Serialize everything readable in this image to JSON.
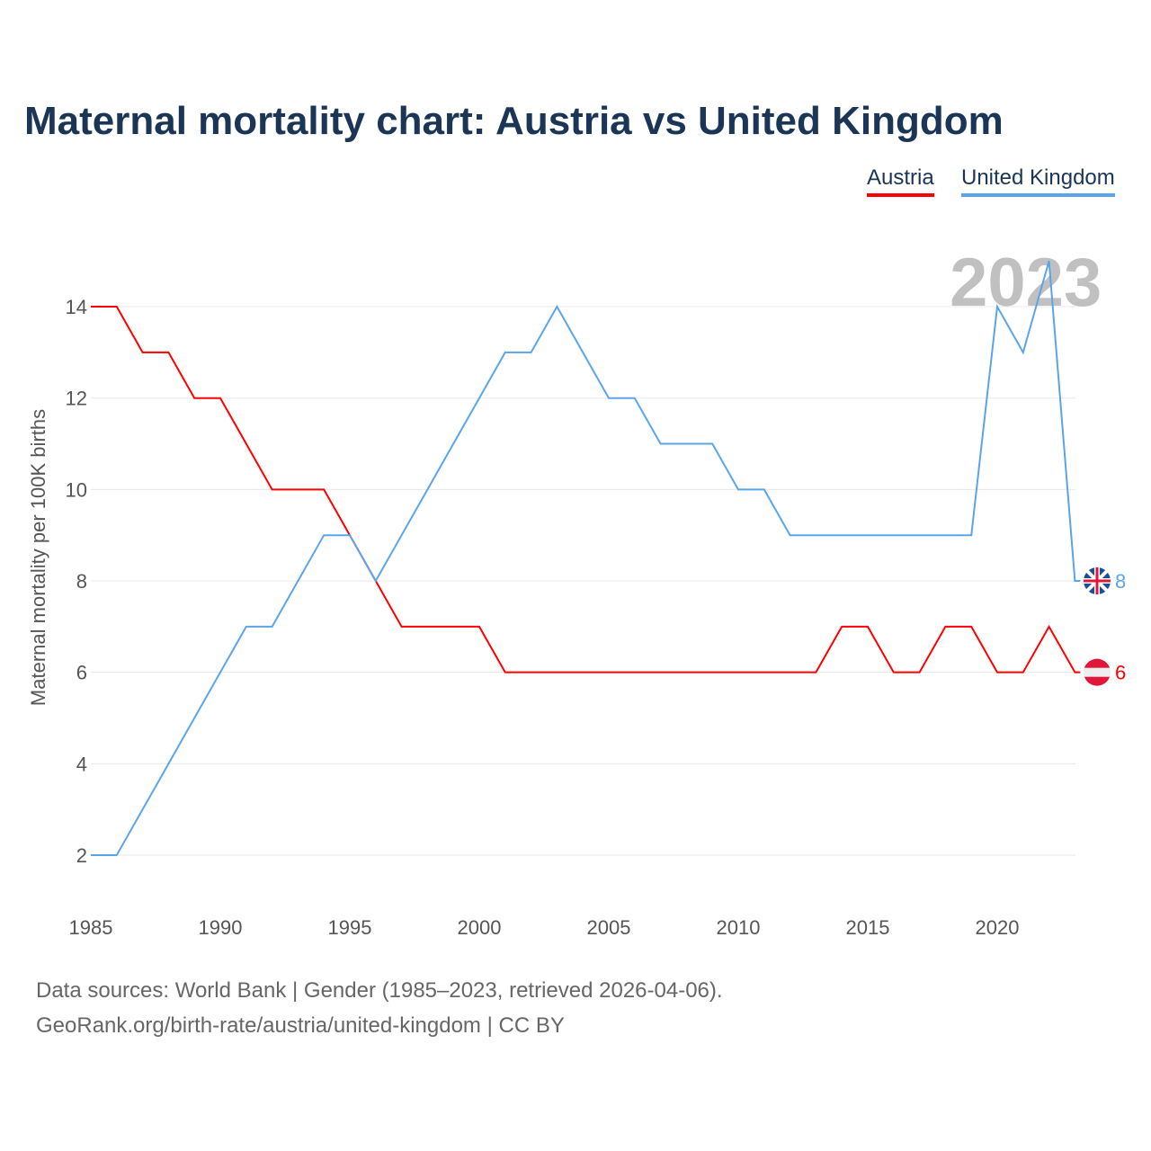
{
  "title": "Maternal mortality chart: Austria vs United Kingdom",
  "footer": {
    "line1": "Data sources: World Bank | Gender (1985–2023, retrieved 2026-04-06).",
    "line2": "GeoRank.org/birth-rate/austria/united-kingdom | CC BY"
  },
  "chart_data": {
    "type": "line",
    "title": "Maternal mortality chart: Austria vs United Kingdom",
    "ylabel": "Maternal mortality per 100K births",
    "xlabel": "",
    "xlim": [
      1985,
      2023
    ],
    "ylim": [
      2,
      14
    ],
    "yticks": [
      2,
      4,
      6,
      8,
      10,
      12,
      14
    ],
    "xticks": [
      1985,
      1990,
      1995,
      2000,
      2005,
      2010,
      2015,
      2020
    ],
    "year_label": "2023",
    "legend_position": "top-right",
    "grid": true,
    "x": [
      1985,
      1986,
      1987,
      1988,
      1989,
      1990,
      1991,
      1992,
      1993,
      1994,
      1995,
      1996,
      1997,
      1998,
      1999,
      2000,
      2001,
      2002,
      2003,
      2004,
      2005,
      2006,
      2007,
      2008,
      2009,
      2010,
      2011,
      2012,
      2013,
      2014,
      2015,
      2016,
      2017,
      2018,
      2019,
      2020,
      2021,
      2022,
      2023
    ],
    "series": [
      {
        "name": "Austria",
        "color": "#ff0000",
        "end_label": "6",
        "values": [
          14,
          14,
          13,
          13,
          12,
          12,
          11,
          10,
          10,
          10,
          9,
          8,
          7,
          7,
          7,
          7,
          6,
          6,
          6,
          6,
          6,
          6,
          6,
          6,
          6,
          6,
          6,
          6,
          6,
          7,
          7,
          6,
          6,
          7,
          7,
          6,
          6,
          7,
          6
        ]
      },
      {
        "name": "United Kingdom",
        "color": "#5aa5ea",
        "end_label": "8",
        "values": [
          2,
          2,
          3,
          4,
          5,
          6,
          7,
          7,
          8,
          9,
          9,
          8,
          9,
          10,
          11,
          12,
          13,
          13,
          14,
          13,
          12,
          12,
          11,
          11,
          11,
          10,
          10,
          9,
          9,
          9,
          9,
          9,
          9,
          9,
          9,
          14,
          13,
          15,
          8
        ]
      }
    ]
  }
}
